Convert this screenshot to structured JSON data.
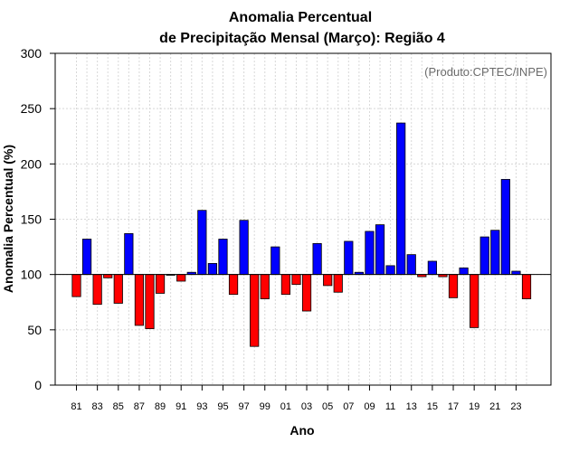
{
  "chart_data": {
    "type": "bar",
    "title": "Anomalia Percentual",
    "subtitle": "de Precipitação Mensal (Março): Região 4",
    "xlabel": "Ano",
    "ylabel": "Anomalia Percentual (%)",
    "credit": "(Produto:CPTEC/INPE)",
    "ylim": [
      0,
      300
    ],
    "yticks": [
      0,
      50,
      100,
      150,
      200,
      250,
      300
    ],
    "baseline": 100,
    "grid": true,
    "colors": {
      "above": "#0000ff",
      "below": "#ff0000"
    },
    "categories": [
      "81",
      "82",
      "83",
      "84",
      "85",
      "86",
      "87",
      "88",
      "89",
      "90",
      "91",
      "92",
      "93",
      "94",
      "95",
      "96",
      "97",
      "98",
      "99",
      "00",
      "01",
      "02",
      "03",
      "04",
      "05",
      "06",
      "07",
      "08",
      "09",
      "10",
      "11",
      "12",
      "13",
      "14",
      "15",
      "16",
      "17",
      "18",
      "19",
      "20",
      "21",
      "22",
      "23",
      "24"
    ],
    "xtick_labels": [
      "81",
      "83",
      "85",
      "87",
      "89",
      "91",
      "93",
      "95",
      "97",
      "99",
      "01",
      "03",
      "05",
      "07",
      "09",
      "11",
      "13",
      "15",
      "17",
      "19",
      "21",
      "23"
    ],
    "values": [
      80,
      132,
      73,
      97,
      74,
      137,
      54,
      51,
      83,
      100,
      94,
      102,
      158,
      110,
      132,
      82,
      149,
      35,
      78,
      125,
      82,
      91,
      67,
      128,
      90,
      84,
      130,
      102,
      139,
      145,
      108,
      237,
      118,
      98,
      112,
      98,
      79,
      106,
      52,
      134,
      140,
      186,
      103,
      78
    ]
  }
}
